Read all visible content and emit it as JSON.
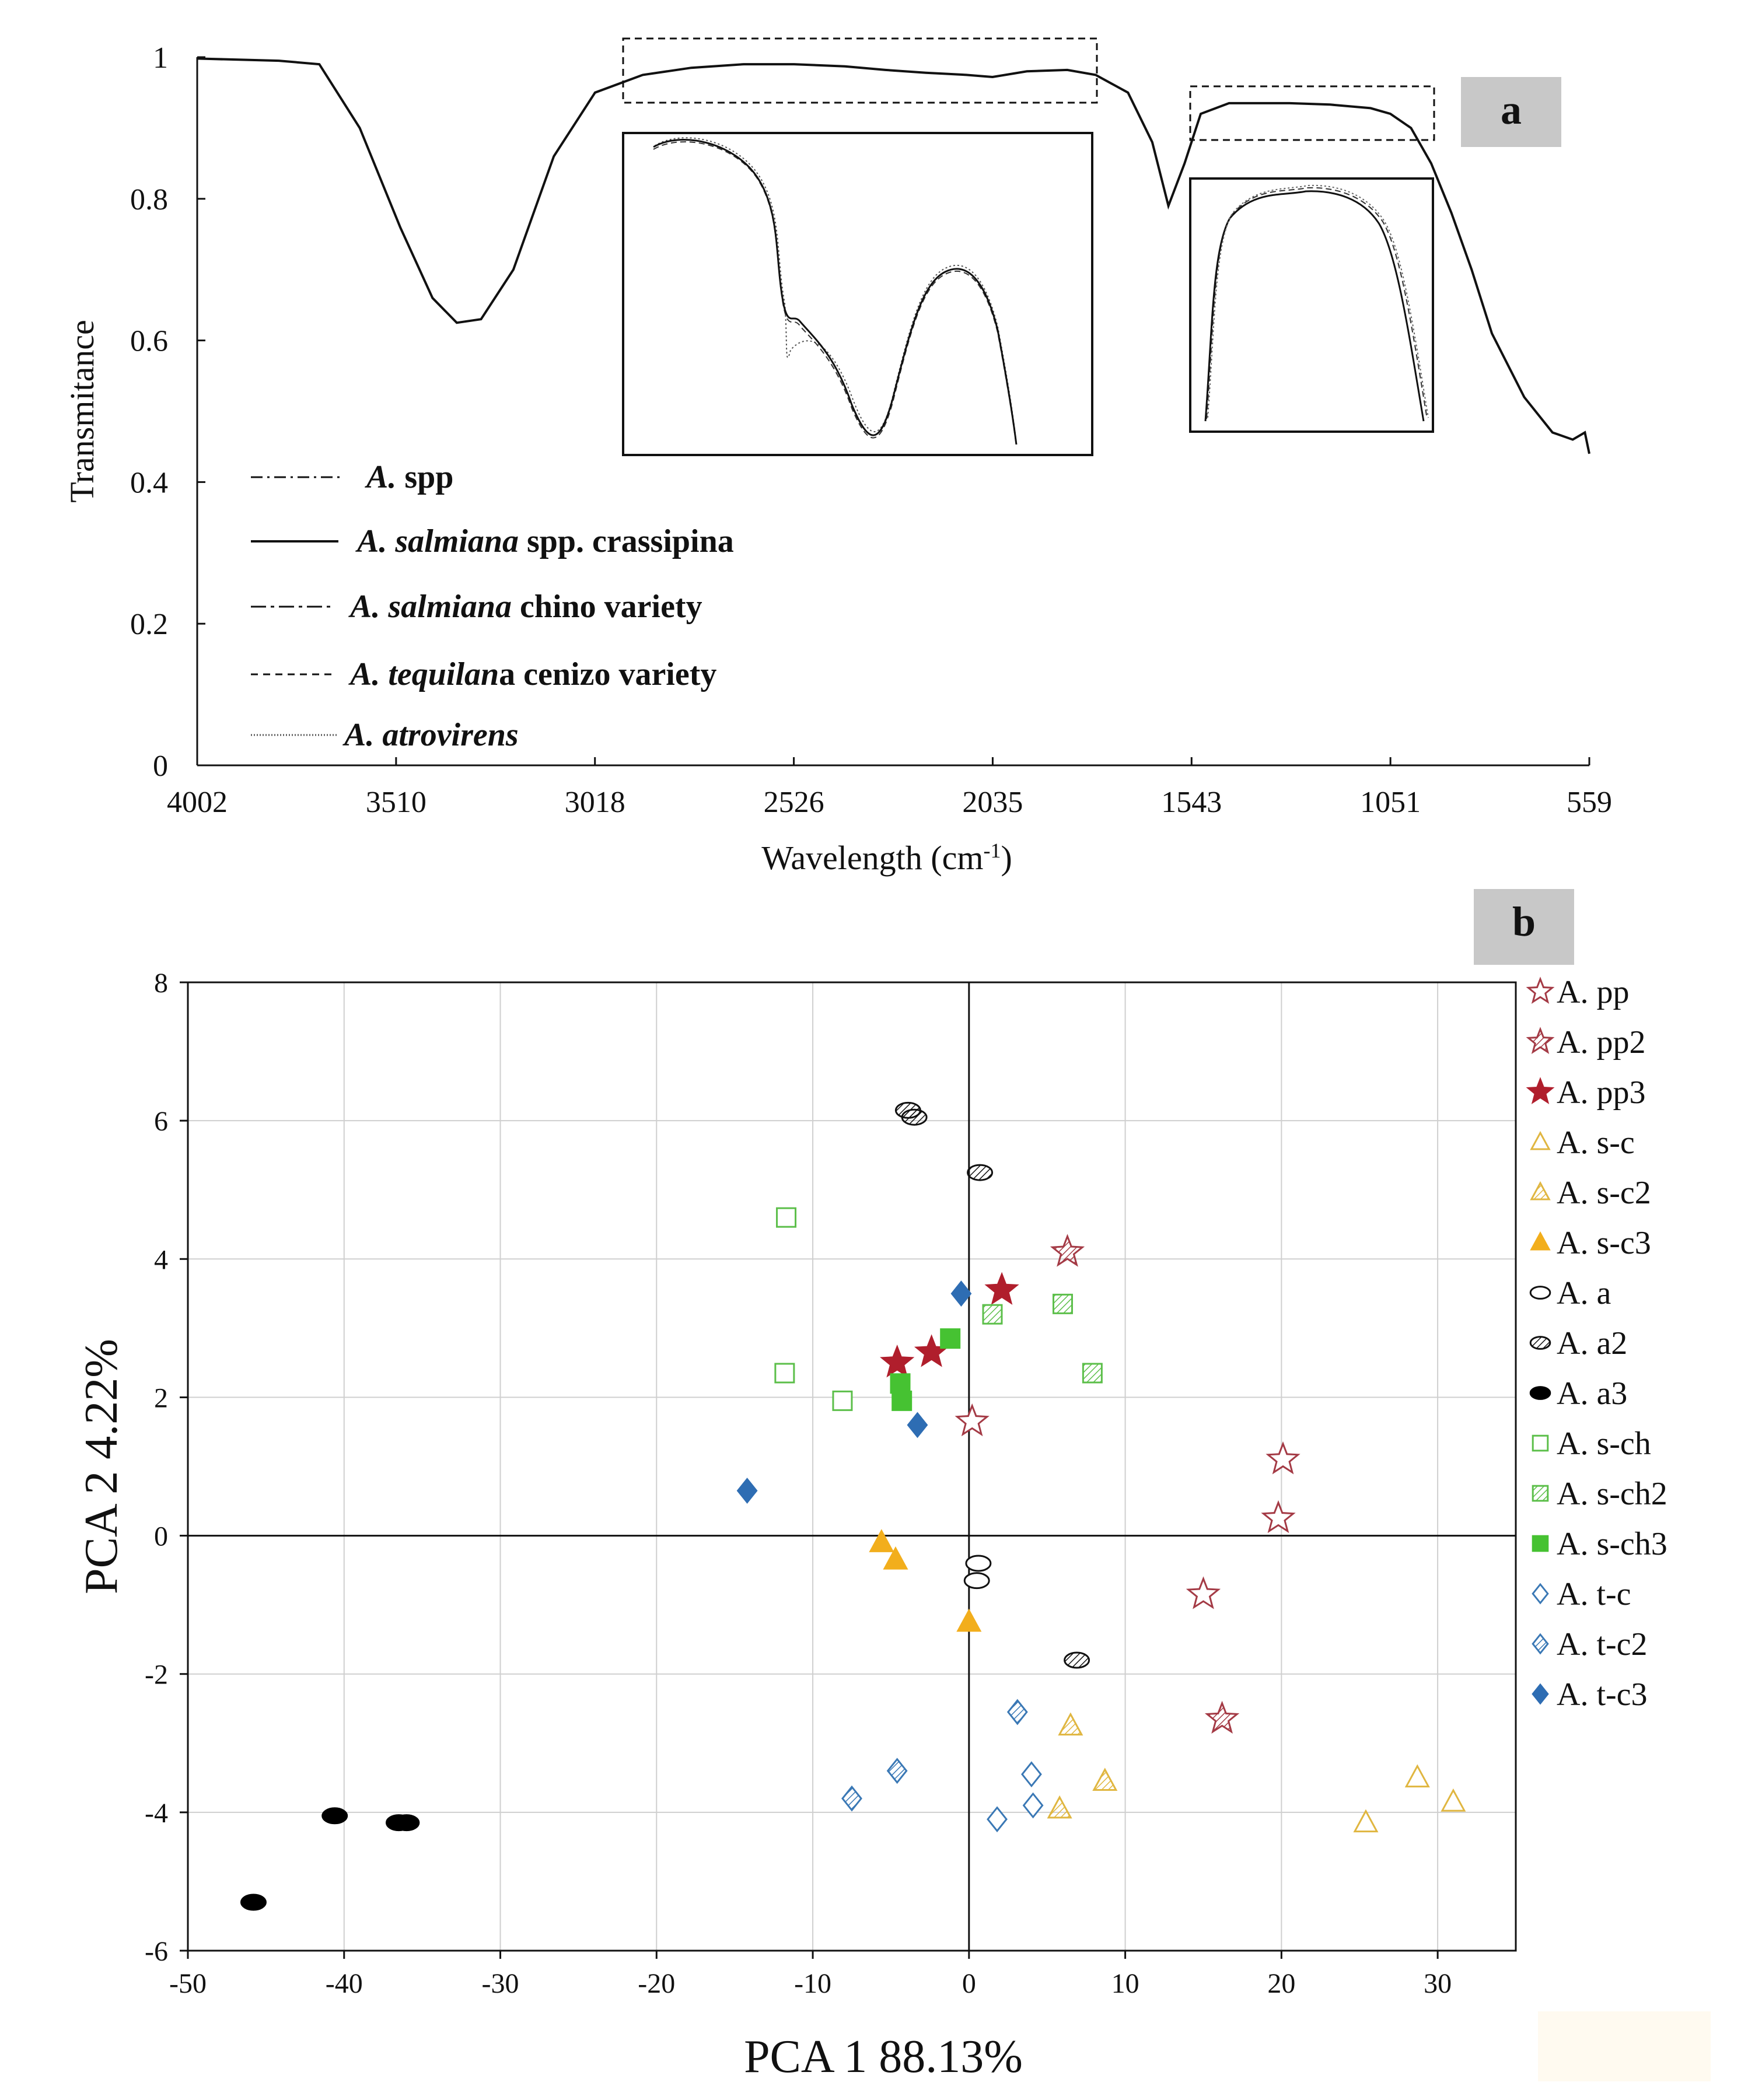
{
  "chart_data": [
    {
      "type": "line",
      "panel_label": "a",
      "xlabel_main": "Wavelength  (cm",
      "xlabel_sup": "-1",
      "xlabel_end": ")",
      "ylabel": "Transmitance",
      "x_ticks": [
        "4002",
        "3510",
        "3018",
        "2526",
        "2035",
        "1543",
        "1051",
        "559"
      ],
      "y_ticks": [
        "0",
        "0.2",
        "0.4",
        "0.6",
        "0.8",
        "1"
      ],
      "xlim": [
        4002,
        559
      ],
      "ylim": [
        0,
        1
      ],
      "insets": 2,
      "legend": [
        {
          "style": "dash-dot",
          "italic": "A.",
          "italic2": " spp",
          "plain": ""
        },
        {
          "style": "solid",
          "italic": "A. salmiana",
          "plain": " spp. crassipina"
        },
        {
          "style": "long-dash-dot",
          "italic": "A. salmiana",
          "plain": " chino variety"
        },
        {
          "style": "dashed",
          "italic": "A. tequilan",
          "plain": "a cenizo variety"
        },
        {
          "style": "dotted",
          "italic": "A. atrovirens",
          "plain": ""
        }
      ],
      "series": [
        {
          "name": "A. salmiana spp. crassipina",
          "x": [
            4002,
            3800,
            3700,
            3600,
            3500,
            3420,
            3360,
            3300,
            3220,
            3120,
            3018,
            2900,
            2780,
            2650,
            2526,
            2400,
            2300,
            2200,
            2100,
            2035,
            1950,
            1850,
            1780,
            1700,
            1640,
            1600,
            1560,
            1520,
            1450,
            1400,
            1300,
            1200,
            1100,
            1051,
            1000,
            950,
            900,
            850,
            800,
            720,
            650,
            600,
            570,
            559
          ],
          "values": [
            0.998,
            0.995,
            0.99,
            0.9,
            0.76,
            0.66,
            0.625,
            0.63,
            0.7,
            0.86,
            0.95,
            0.975,
            0.985,
            0.99,
            0.99,
            0.987,
            0.982,
            0.978,
            0.975,
            0.972,
            0.98,
            0.982,
            0.975,
            0.95,
            0.88,
            0.79,
            0.85,
            0.92,
            0.935,
            0.935,
            0.935,
            0.933,
            0.928,
            0.92,
            0.9,
            0.85,
            0.78,
            0.7,
            0.61,
            0.52,
            0.47,
            0.46,
            0.47,
            0.44
          ]
        }
      ]
    },
    {
      "type": "scatter",
      "panel_label": "b",
      "xlabel": "PCA 1 88.13%",
      "ylabel": "PCA 2  4.22%",
      "xlim": [
        -50,
        35
      ],
      "ylim": [
        -6,
        8
      ],
      "x_ticks": [
        "-50",
        "-40",
        "-30",
        "-20",
        "-10",
        "0",
        "10",
        "20",
        "30"
      ],
      "y_ticks": [
        "-6",
        "-4",
        "-2",
        "0",
        "2",
        "4",
        "6",
        "8"
      ],
      "series": [
        {
          "name": "A. pp",
          "marker": "star",
          "fill": "open",
          "color": "#a43a45",
          "points": [
            [
              20.1,
              1.1
            ],
            [
              19.8,
              0.25
            ],
            [
              15.0,
              -0.85
            ],
            [
              0.2,
              1.65
            ]
          ]
        },
        {
          "name": "A. pp2",
          "marker": "star",
          "fill": "hatch",
          "color": "#a43a45",
          "points": [
            [
              6.3,
              4.1
            ],
            [
              16.2,
              -2.65
            ]
          ]
        },
        {
          "name": "A. pp3",
          "marker": "star",
          "fill": "solid",
          "color": "#b01e2c",
          "points": [
            [
              2.1,
              3.55
            ],
            [
              -2.4,
              2.65
            ],
            [
              -4.6,
              2.5
            ]
          ]
        },
        {
          "name": "A. s-c",
          "marker": "triangle",
          "fill": "open",
          "color": "#e0b640",
          "points": [
            [
              28.7,
              -3.5
            ],
            [
              31.0,
              -3.85
            ],
            [
              25.4,
              -4.15
            ]
          ]
        },
        {
          "name": "A. s-c2",
          "marker": "triangle",
          "fill": "hatch",
          "color": "#e0b640",
          "points": [
            [
              6.5,
              -2.75
            ],
            [
              8.7,
              -3.55
            ],
            [
              5.8,
              -3.95
            ]
          ]
        },
        {
          "name": "A. s-c3",
          "marker": "triangle",
          "fill": "solid",
          "color": "#f2ae1c",
          "points": [
            [
              -5.6,
              -0.1
            ],
            [
              -4.7,
              -0.35
            ],
            [
              0.0,
              -1.25
            ]
          ]
        },
        {
          "name": "A. a",
          "marker": "ellipse",
          "fill": "open",
          "color": "#111111",
          "points": [
            [
              0.6,
              -0.4
            ],
            [
              0.5,
              -0.65
            ]
          ]
        },
        {
          "name": "A. a2",
          "marker": "ellipse",
          "fill": "hatch",
          "color": "#111111",
          "points": [
            [
              -3.9,
              6.15
            ],
            [
              -3.5,
              6.05
            ],
            [
              0.7,
              5.25
            ],
            [
              6.9,
              -1.8
            ]
          ]
        },
        {
          "name": "A. a3",
          "marker": "ellipse",
          "fill": "solid",
          "color": "#000000",
          "points": [
            [
              -40.6,
              -4.05
            ],
            [
              -36.5,
              -4.15
            ],
            [
              -36.0,
              -4.15
            ],
            [
              -45.8,
              -5.3
            ]
          ]
        },
        {
          "name": "A. s-ch",
          "marker": "square",
          "fill": "open",
          "color": "#5cbf4a",
          "points": [
            [
              -11.7,
              4.6
            ],
            [
              -11.8,
              2.35
            ],
            [
              -8.1,
              1.95
            ]
          ]
        },
        {
          "name": "A. s-ch2",
          "marker": "square",
          "fill": "hatch",
          "color": "#5cbf4a",
          "points": [
            [
              1.5,
              3.2
            ],
            [
              6.0,
              3.35
            ],
            [
              7.9,
              2.35
            ]
          ]
        },
        {
          "name": "A. s-ch3",
          "marker": "square",
          "fill": "solid",
          "color": "#46c232",
          "points": [
            [
              -1.2,
              2.85
            ],
            [
              -4.4,
              2.2
            ],
            [
              -4.3,
              1.95
            ]
          ]
        },
        {
          "name": "A. t-c",
          "marker": "diamond",
          "fill": "open",
          "color": "#3a78b5",
          "points": [
            [
              4.0,
              -3.45
            ],
            [
              4.1,
              -3.9
            ],
            [
              1.8,
              -4.1
            ]
          ]
        },
        {
          "name": "A. t-c2",
          "marker": "diamond",
          "fill": "hatch",
          "color": "#3a78b5",
          "points": [
            [
              3.1,
              -2.55
            ],
            [
              -4.6,
              -3.4
            ],
            [
              -7.5,
              -3.8
            ]
          ]
        },
        {
          "name": "A. t-c3",
          "marker": "diamond",
          "fill": "solid",
          "color": "#2e6db3",
          "points": [
            [
              -0.5,
              3.5
            ],
            [
              -3.3,
              1.6
            ],
            [
              -14.2,
              0.65
            ]
          ]
        }
      ]
    }
  ]
}
